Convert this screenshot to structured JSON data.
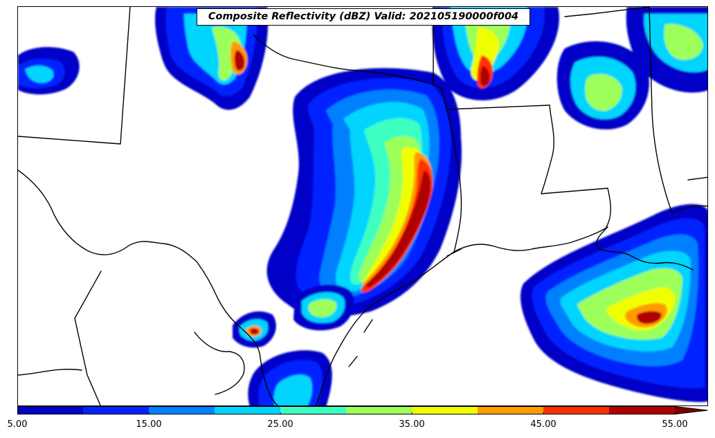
{
  "title": "Composite Reflectivity (dBZ) Valid: 202105190000f004",
  "colorbar": {
    "tick_labels": [
      "5.00",
      "15.00",
      "25.00",
      "35.00",
      "45.00",
      "55.00"
    ],
    "levels": [
      5,
      10,
      15,
      20,
      25,
      30,
      35,
      40,
      45,
      50,
      55
    ],
    "colors": [
      "#0000c8",
      "#0022ff",
      "#0080ff",
      "#00d4ff",
      "#3dffc2",
      "#9cff5a",
      "#f0ff00",
      "#ff9a00",
      "#ff3000",
      "#b00000",
      "#7a0000"
    ],
    "extend": "max"
  }
}
